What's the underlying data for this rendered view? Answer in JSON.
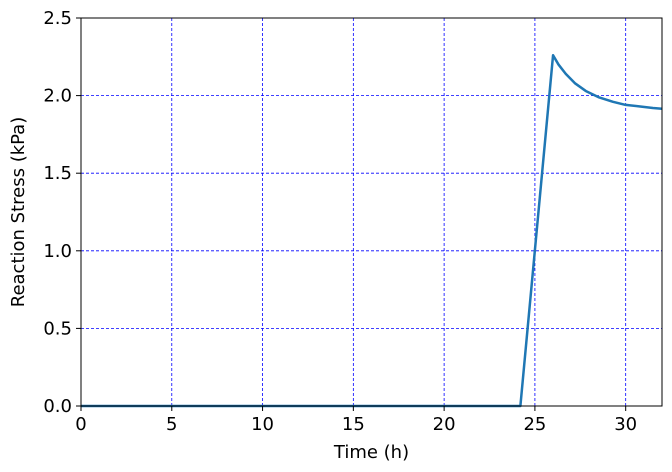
{
  "chart_data": {
    "type": "line",
    "xlabel": "Time (h)",
    "ylabel": "Reaction Stress (kPa)",
    "xlim": [
      0,
      32
    ],
    "ylim": [
      0,
      2.5
    ],
    "x_ticks": [
      0,
      5,
      10,
      15,
      20,
      25,
      30
    ],
    "y_ticks": [
      0.0,
      0.5,
      1.0,
      1.5,
      2.0,
      2.5
    ],
    "x_tick_labels": [
      "0",
      "5",
      "10",
      "15",
      "20",
      "25",
      "30"
    ],
    "y_tick_labels": [
      "0.0",
      "0.5",
      "1.0",
      "1.5",
      "2.0",
      "2.5"
    ],
    "grid": true,
    "grid_color": "#0000ff",
    "series": [
      {
        "color": "#1f77b4",
        "x": [
          0,
          24.2,
          26.0,
          26.3,
          26.7,
          27.2,
          27.8,
          28.5,
          29.3,
          30.0,
          30.8,
          31.5,
          32.0
        ],
        "y": [
          0,
          0,
          2.26,
          2.2,
          2.14,
          2.08,
          2.03,
          1.99,
          1.96,
          1.94,
          1.93,
          1.92,
          1.915
        ]
      }
    ]
  }
}
